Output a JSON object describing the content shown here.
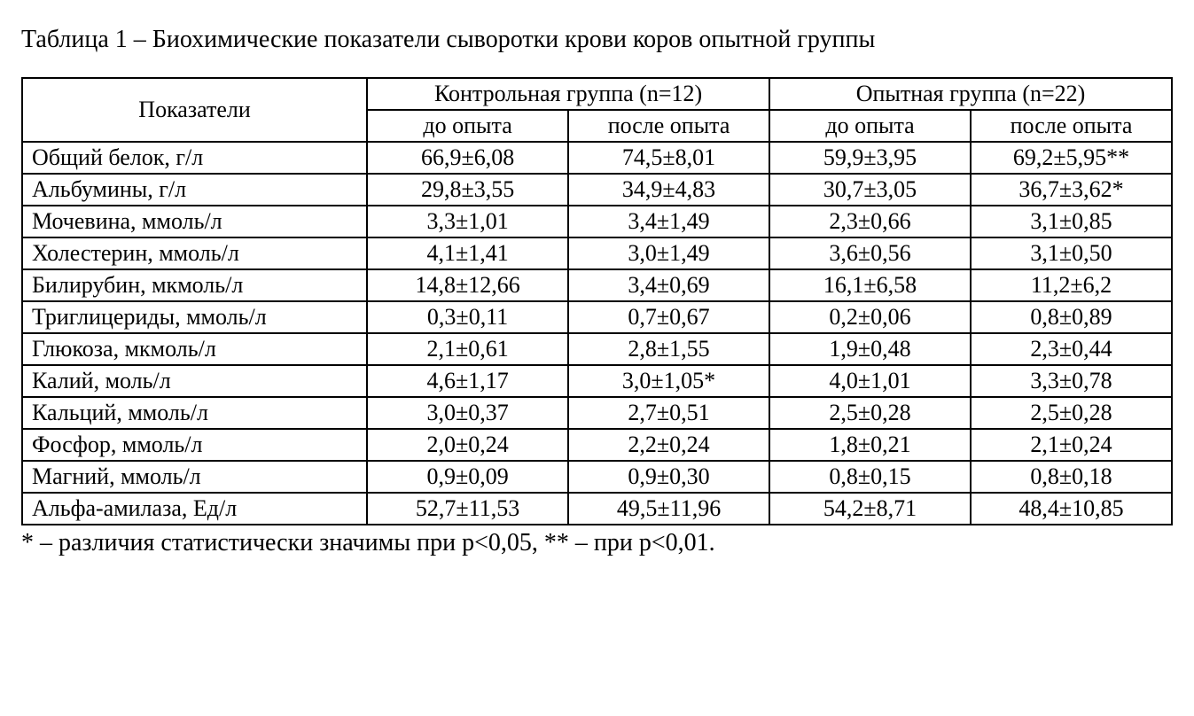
{
  "caption": "Таблица 1 – Биохимические показатели сыворотки крови коров опытной группы",
  "table": {
    "type": "table",
    "background_color": "#ffffff",
    "border_color": "#000000",
    "font_family": "Times New Roman",
    "font_size_pt": 20,
    "col_widths_pct": [
      30,
      17.5,
      17.5,
      17.5,
      17.5
    ],
    "header": {
      "indicators_label": "Показатели",
      "group_control": "Контрольная группа (n=12)",
      "group_experimental": "Опытная группа (n=22)",
      "before_label": "до опыта",
      "after_label": "после опыта"
    },
    "rows": [
      {
        "label": "Общий белок, г/л",
        "c_before": "66,9±6,08",
        "c_after": "74,5±8,01",
        "e_before": "59,9±3,95",
        "e_after": "69,2±5,95**"
      },
      {
        "label": "Альбумины, г/л",
        "c_before": "29,8±3,55",
        "c_after": "34,9±4,83",
        "e_before": "30,7±3,05",
        "e_after": "36,7±3,62*"
      },
      {
        "label": "Мочевина, ммоль/л",
        "c_before": "3,3±1,01",
        "c_after": "3,4±1,49",
        "e_before": "2,3±0,66",
        "e_after": "3,1±0,85"
      },
      {
        "label": "Холестерин, ммоль/л",
        "c_before": "4,1±1,41",
        "c_after": "3,0±1,49",
        "e_before": "3,6±0,56",
        "e_after": "3,1±0,50"
      },
      {
        "label": "Билирубин, мкмоль/л",
        "c_before": "14,8±12,66",
        "c_after": "3,4±0,69",
        "e_before": "16,1±6,58",
        "e_after": "11,2±6,2"
      },
      {
        "label": "Триглицериды, ммоль/л",
        "c_before": "0,3±0,11",
        "c_after": "0,7±0,67",
        "e_before": "0,2±0,06",
        "e_after": "0,8±0,89"
      },
      {
        "label": "Глюкоза, мкмоль/л",
        "c_before": "2,1±0,61",
        "c_after": "2,8±1,55",
        "e_before": "1,9±0,48",
        "e_after": "2,3±0,44"
      },
      {
        "label": "Калий, моль/л",
        "c_before": "4,6±1,17",
        "c_after": "3,0±1,05*",
        "e_before": "4,0±1,01",
        "e_after": "3,3±0,78"
      },
      {
        "label": "Кальций, ммоль/л",
        "c_before": "3,0±0,37",
        "c_after": "2,7±0,51",
        "e_before": "2,5±0,28",
        "e_after": "2,5±0,28"
      },
      {
        "label": "Фосфор, ммоль/л",
        "c_before": "2,0±0,24",
        "c_after": "2,2±0,24",
        "e_before": "1,8±0,21",
        "e_after": "2,1±0,24"
      },
      {
        "label": "Магний, ммоль/л",
        "c_before": "0,9±0,09",
        "c_after": "0,9±0,30",
        "e_before": "0,8±0,15",
        "e_after": "0,8±0,18"
      },
      {
        "label": "Альфа-амилаза, Ед/л",
        "c_before": "52,7±11,53",
        "c_after": "49,5±11,96",
        "e_before": "54,2±8,71",
        "e_after": "48,4±10,85"
      }
    ]
  },
  "footnote": "* – различия статистически значимы при p<0,05, ** –  при p<0,01."
}
